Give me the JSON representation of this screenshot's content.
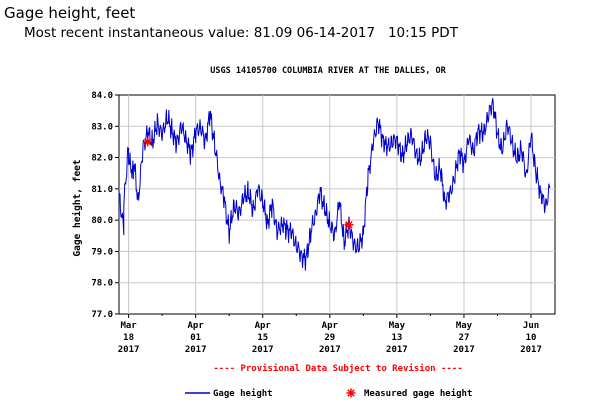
{
  "header": {
    "title": "Gage height, feet",
    "subtitle": "Most recent instantaneous value: 81.09 06-14-2017   10:15 PDT"
  },
  "chart_data": {
    "type": "line",
    "title": "USGS 14105700 COLUMBIA RIVER AT THE DALLES, OR",
    "ylabel": "Gage height, feet",
    "xlabel": "",
    "ylim": [
      77.0,
      84.0
    ],
    "yticks": [
      "77.0",
      "78.0",
      "79.0",
      "80.0",
      "81.0",
      "82.0",
      "83.0",
      "84.0"
    ],
    "xlim": [
      "2017-03-18",
      "2017-06-14"
    ],
    "xticks": [
      {
        "date": "2017-03-18",
        "label": [
          "Mar",
          "18",
          "2017"
        ]
      },
      {
        "date": "2017-04-01",
        "label": [
          "Apr",
          "01",
          "2017"
        ]
      },
      {
        "date": "2017-04-15",
        "label": [
          "Apr",
          "15",
          "2017"
        ]
      },
      {
        "date": "2017-04-29",
        "label": [
          "Apr",
          "29",
          "2017"
        ]
      },
      {
        "date": "2017-05-13",
        "label": [
          "May",
          "13",
          "2017"
        ]
      },
      {
        "date": "2017-05-27",
        "label": [
          "May",
          "27",
          "2017"
        ]
      },
      {
        "date": "2017-06-10",
        "label": [
          "Jun",
          "10",
          "2017"
        ]
      }
    ],
    "grid": true,
    "provisional_note": "---- Provisional Data Subject to Revision ----",
    "series": [
      {
        "name": "Gage height",
        "color": "#0000cc",
        "x": [
          "2017-03-16",
          "2017-03-16",
          "2017-03-17",
          "2017-03-17",
          "2017-03-18",
          "2017-03-18",
          "2017-03-19",
          "2017-03-19",
          "2017-03-20",
          "2017-03-21",
          "2017-03-22",
          "2017-03-23",
          "2017-03-24",
          "2017-03-25",
          "2017-03-26",
          "2017-03-27",
          "2017-03-28",
          "2017-03-29",
          "2017-03-30",
          "2017-03-31",
          "2017-04-01",
          "2017-04-02",
          "2017-04-03",
          "2017-04-04",
          "2017-04-05",
          "2017-04-06",
          "2017-04-07",
          "2017-04-08",
          "2017-04-09",
          "2017-04-10",
          "2017-04-11",
          "2017-04-12",
          "2017-04-13",
          "2017-04-14",
          "2017-04-15",
          "2017-04-16",
          "2017-04-17",
          "2017-04-18",
          "2017-04-19",
          "2017-04-20",
          "2017-04-21",
          "2017-04-22",
          "2017-04-23",
          "2017-04-24",
          "2017-04-25",
          "2017-04-26",
          "2017-04-27",
          "2017-04-28",
          "2017-04-29",
          "2017-04-30",
          "2017-05-01",
          "2017-05-02",
          "2017-05-03",
          "2017-05-04",
          "2017-05-05",
          "2017-05-06",
          "2017-05-07",
          "2017-05-08",
          "2017-05-09",
          "2017-05-10",
          "2017-05-11",
          "2017-05-12",
          "2017-05-13",
          "2017-05-14",
          "2017-05-15",
          "2017-05-16",
          "2017-05-17",
          "2017-05-18",
          "2017-05-19",
          "2017-05-20",
          "2017-05-21",
          "2017-05-22",
          "2017-05-23",
          "2017-05-24",
          "2017-05-25",
          "2017-05-26",
          "2017-05-27",
          "2017-05-28",
          "2017-05-29",
          "2017-05-30",
          "2017-05-31",
          "2017-06-01",
          "2017-06-02",
          "2017-06-03",
          "2017-06-04",
          "2017-06-05",
          "2017-06-06",
          "2017-06-07",
          "2017-06-08",
          "2017-06-09",
          "2017-06-10",
          "2017-06-11",
          "2017-06-12",
          "2017-06-13",
          "2017-06-14"
        ],
        "values": [
          81.0,
          80.8,
          79.7,
          80.5,
          82.4,
          81.9,
          81.5,
          82.0,
          80.6,
          82.3,
          82.8,
          82.5,
          83.1,
          82.7,
          83.3,
          82.9,
          82.4,
          83.0,
          82.6,
          82.1,
          82.8,
          83.0,
          82.5,
          83.4,
          82.4,
          81.3,
          80.6,
          79.6,
          80.5,
          80.2,
          80.7,
          80.9,
          80.3,
          81.0,
          80.6,
          79.9,
          80.5,
          79.6,
          79.9,
          79.7,
          79.6,
          79.2,
          78.9,
          78.7,
          79.6,
          80.2,
          80.9,
          80.3,
          79.9,
          79.5,
          80.6,
          79.3,
          79.9,
          79.2,
          79.1,
          79.6,
          81.4,
          82.4,
          83.2,
          82.6,
          82.3,
          82.5,
          82.6,
          82.0,
          82.4,
          82.8,
          82.1,
          81.9,
          82.7,
          82.5,
          81.3,
          81.7,
          80.6,
          80.8,
          81.3,
          82.2,
          81.8,
          82.6,
          82.2,
          82.9,
          82.7,
          83.3,
          83.8,
          82.7,
          82.2,
          83.1,
          82.5,
          81.9,
          82.3,
          81.4,
          82.7,
          81.5,
          80.9,
          80.4,
          81.09
        ]
      },
      {
        "name": "Measured gage height",
        "color": "#ff0000",
        "marker": "*",
        "x": [
          "2017-03-22",
          "2017-05-03"
        ],
        "values": [
          82.5,
          79.85
        ]
      }
    ]
  },
  "legend": {
    "placement": "bottom",
    "line_label": "Gage height",
    "marker_label": "Measured gage height"
  }
}
